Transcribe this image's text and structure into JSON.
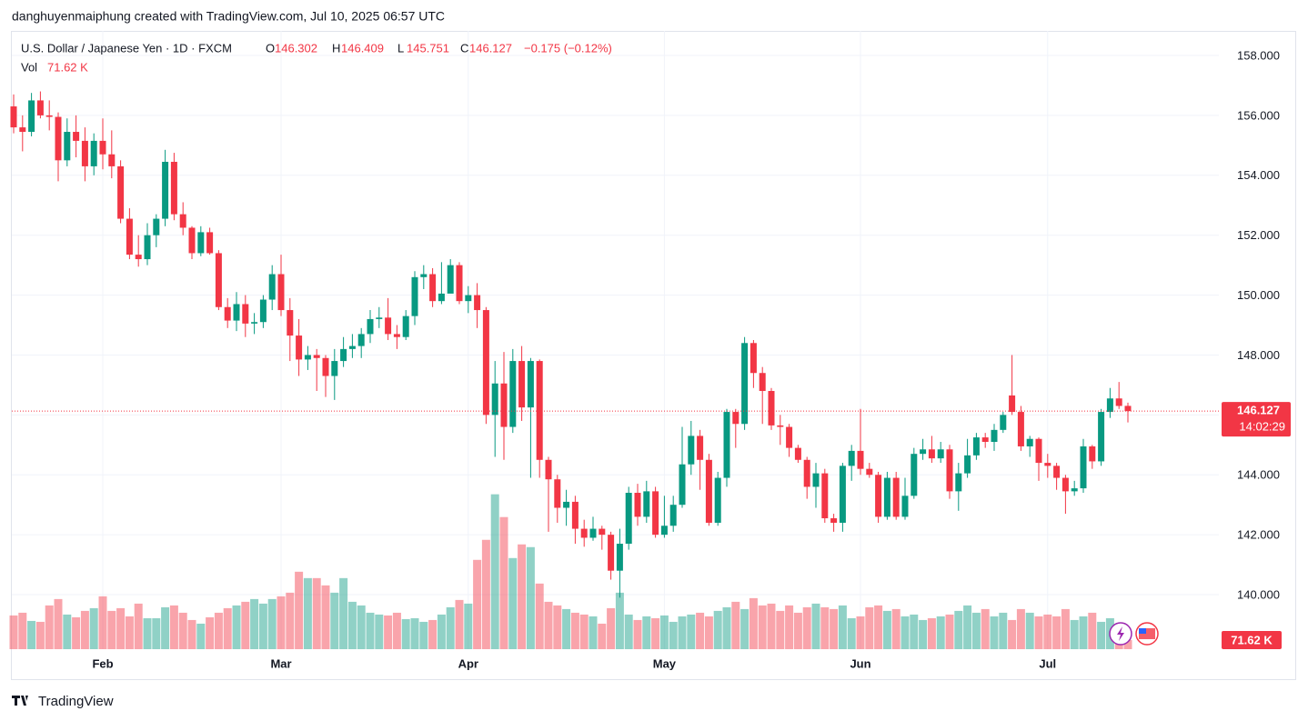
{
  "chart_data": {
    "type": "candlestick",
    "attribution": "danghuyenmaiphung created with TradingView.com, Jul 10, 2025 06:57 UTC",
    "title": "U.S. Dollar / Japanese Yen · 1D · FXCM",
    "ohlc_labels": [
      "O",
      "H",
      "L",
      "C"
    ],
    "change": "−0.175 (−0.12%)",
    "countdown": "14:02:29",
    "brand": "TradingView",
    "up_color": "#089981",
    "down_color": "#f23645",
    "grid": true,
    "categories": [
      null,
      null,
      null,
      null,
      null,
      null,
      null,
      null,
      null,
      null,
      "Feb",
      null,
      null,
      null,
      null,
      null,
      null,
      null,
      null,
      null,
      null,
      null,
      null,
      null,
      null,
      null,
      null,
      null,
      null,
      null,
      "Mar",
      null,
      null,
      null,
      null,
      null,
      null,
      null,
      null,
      null,
      null,
      null,
      null,
      null,
      null,
      null,
      null,
      null,
      null,
      null,
      null,
      "Apr",
      null,
      null,
      null,
      null,
      null,
      null,
      null,
      null,
      null,
      null,
      null,
      null,
      null,
      null,
      null,
      null,
      null,
      null,
      null,
      null,
      null,
      "May",
      null,
      null,
      null,
      null,
      null,
      null,
      null,
      null,
      null,
      null,
      null,
      null,
      null,
      null,
      null,
      null,
      null,
      null,
      null,
      null,
      null,
      "Jun",
      null,
      null,
      null,
      null,
      null,
      null,
      null,
      null,
      null,
      null,
      null,
      null,
      null,
      null,
      null,
      null,
      null,
      null,
      null,
      null,
      "Jul",
      null,
      null,
      null,
      null,
      null,
      null,
      null,
      null,
      null
    ],
    "open": [
      156.3,
      155.6,
      155.45,
      156.5,
      156.0,
      155.95,
      154.5,
      155.45,
      155.15,
      154.3,
      155.15,
      154.7,
      154.3,
      152.55,
      151.35,
      151.2,
      152.0,
      152.55,
      154.45,
      152.7,
      152.25,
      151.4,
      152.1,
      151.4,
      149.6,
      149.15,
      149.7,
      149.05,
      149.1,
      149.85,
      150.7,
      149.5,
      148.65,
      147.85,
      148.0,
      147.9,
      147.3,
      147.8,
      148.2,
      148.3,
      148.7,
      149.2,
      149.25,
      148.7,
      148.6,
      149.3,
      150.6,
      150.7,
      149.8,
      150.05,
      151.0,
      149.8,
      150.0,
      149.5,
      146.0,
      147.05,
      145.6,
      147.8,
      146.25,
      147.8,
      144.5,
      143.85,
      142.9,
      143.1,
      142.2,
      141.9,
      142.2,
      142.0,
      140.8,
      141.7,
      143.4,
      142.6,
      143.45,
      142.0,
      142.3,
      143.0,
      144.35,
      145.3,
      144.5,
      142.4,
      143.9,
      146.1,
      145.7,
      148.4,
      147.4,
      146.8,
      145.65,
      145.6,
      144.9,
      144.5,
      143.6,
      144.05,
      142.55,
      142.4,
      144.3,
      144.8,
      144.2,
      144.0,
      142.6,
      143.9,
      142.6,
      143.3,
      144.7,
      144.85,
      144.55,
      144.85,
      143.45,
      144.05,
      144.65,
      145.25,
      145.1,
      145.5,
      146.65,
      146.1,
      144.95,
      145.2,
      144.4,
      144.3,
      143.9,
      143.45,
      143.55,
      144.95,
      144.45,
      146.1,
      146.55,
      146.302
    ],
    "high": [
      156.7,
      156.0,
      156.75,
      156.8,
      156.5,
      156.1,
      155.9,
      156.0,
      155.6,
      155.4,
      155.9,
      155.5,
      154.5,
      152.9,
      152.0,
      152.4,
      152.7,
      154.85,
      154.75,
      153.1,
      152.3,
      152.3,
      152.25,
      151.5,
      149.9,
      150.1,
      150.0,
      149.4,
      150.0,
      151.0,
      151.35,
      149.9,
      149.2,
      148.3,
      148.2,
      148.0,
      148.2,
      148.6,
      148.7,
      148.9,
      149.5,
      149.6,
      149.9,
      149.0,
      149.5,
      150.8,
      151.0,
      150.9,
      151.1,
      151.2,
      151.1,
      150.3,
      150.4,
      149.6,
      147.8,
      148.1,
      148.2,
      148.3,
      147.9,
      147.85,
      144.6,
      144.0,
      143.5,
      143.3,
      142.5,
      142.6,
      142.3,
      142.1,
      142.2,
      143.6,
      143.7,
      143.8,
      143.6,
      143.3,
      143.3,
      145.6,
      145.8,
      145.5,
      144.7,
      144.1,
      146.2,
      146.2,
      148.6,
      148.5,
      147.6,
      146.9,
      146.0,
      145.7,
      145.0,
      144.6,
      144.4,
      144.2,
      142.7,
      144.4,
      145.0,
      146.2,
      144.4,
      144.1,
      144.1,
      144.1,
      143.9,
      144.9,
      145.2,
      145.3,
      145.1,
      145.0,
      144.4,
      145.2,
      145.4,
      145.4,
      145.7,
      146.1,
      148.0,
      146.3,
      145.3,
      145.25,
      144.7,
      144.4,
      144.0,
      143.8,
      145.2,
      145.0,
      146.2,
      146.9,
      147.1,
      146.409
    ],
    "low": [
      155.4,
      154.8,
      155.3,
      155.9,
      155.5,
      153.8,
      154.3,
      154.6,
      153.8,
      154.0,
      154.2,
      153.9,
      152.4,
      151.2,
      150.95,
      151.0,
      151.6,
      152.3,
      152.5,
      152.0,
      151.2,
      151.3,
      151.35,
      149.5,
      148.9,
      148.8,
      148.6,
      148.7,
      148.9,
      149.5,
      149.3,
      147.8,
      147.3,
      147.5,
      146.8,
      146.6,
      146.5,
      147.6,
      147.9,
      147.9,
      148.4,
      148.9,
      148.5,
      148.2,
      148.5,
      149.0,
      150.2,
      149.6,
      149.7,
      150.2,
      149.7,
      149.4,
      148.9,
      145.7,
      144.6,
      144.5,
      145.4,
      145.8,
      143.9,
      143.9,
      142.1,
      142.4,
      142.3,
      141.7,
      141.6,
      141.8,
      141.5,
      140.5,
      139.9,
      141.5,
      142.3,
      142.4,
      141.9,
      141.9,
      142.1,
      142.9,
      144.0,
      143.5,
      142.3,
      142.3,
      143.6,
      144.9,
      145.5,
      146.9,
      145.7,
      145.5,
      145.0,
      144.6,
      144.4,
      143.2,
      142.9,
      142.4,
      142.1,
      142.1,
      143.8,
      144.0,
      143.9,
      142.4,
      142.5,
      142.5,
      142.5,
      143.2,
      144.5,
      144.4,
      144.4,
      143.2,
      142.8,
      143.9,
      144.5,
      144.9,
      144.8,
      145.4,
      146.0,
      144.8,
      144.6,
      143.8,
      143.9,
      143.5,
      142.7,
      143.3,
      143.4,
      144.2,
      144.3,
      145.9,
      146.2,
      145.751
    ],
    "close": [
      155.6,
      155.45,
      156.5,
      156.0,
      155.95,
      154.5,
      155.45,
      155.15,
      154.3,
      155.15,
      154.7,
      154.3,
      152.55,
      151.35,
      151.2,
      152.0,
      152.55,
      154.45,
      152.7,
      152.25,
      151.4,
      152.1,
      151.4,
      149.6,
      149.15,
      149.7,
      149.05,
      149.1,
      149.85,
      150.7,
      149.5,
      148.65,
      147.85,
      148.0,
      147.9,
      147.3,
      147.8,
      148.2,
      148.3,
      148.7,
      149.2,
      149.25,
      148.7,
      148.6,
      149.3,
      150.6,
      150.7,
      149.8,
      150.05,
      151.0,
      149.8,
      150.0,
      149.5,
      146.0,
      147.05,
      145.6,
      147.8,
      146.25,
      147.8,
      144.5,
      143.85,
      142.9,
      143.1,
      142.2,
      141.9,
      142.2,
      142.0,
      140.8,
      141.7,
      143.4,
      142.6,
      143.45,
      142.0,
      142.3,
      143.0,
      144.35,
      145.3,
      144.5,
      142.4,
      143.9,
      146.1,
      145.7,
      148.4,
      147.4,
      146.8,
      145.65,
      145.6,
      144.9,
      144.5,
      143.6,
      144.05,
      142.55,
      142.4,
      144.3,
      144.8,
      144.2,
      144.0,
      142.6,
      143.9,
      142.6,
      143.3,
      144.7,
      144.85,
      144.55,
      144.85,
      143.45,
      144.05,
      144.65,
      145.25,
      145.1,
      145.5,
      146.0,
      146.1,
      144.95,
      145.2,
      144.4,
      144.3,
      143.9,
      143.45,
      143.55,
      144.95,
      144.45,
      146.1,
      146.55,
      146.3,
      146.127
    ],
    "volume": {
      "name": "Vol",
      "axis": "y2",
      "values": [
        259,
        280,
        217,
        210,
        336,
        385,
        266,
        245,
        294,
        315,
        406,
        294,
        315,
        252,
        350,
        238,
        238,
        322,
        336,
        280,
        224,
        196,
        245,
        280,
        315,
        336,
        364,
        385,
        350,
        385,
        406,
        434,
        595,
        546,
        546,
        490,
        434,
        546,
        364,
        336,
        280,
        266,
        259,
        280,
        231,
        238,
        210,
        224,
        266,
        322,
        378,
        350,
        686,
        840,
        1190,
        1015,
        700,
        805,
        784,
        504,
        364,
        336,
        308,
        280,
        266,
        252,
        196,
        315,
        434,
        266,
        224,
        252,
        238,
        259,
        210,
        252,
        266,
        280,
        252,
        294,
        322,
        364,
        308,
        392,
        336,
        350,
        294,
        336,
        280,
        322,
        350,
        322,
        308,
        336,
        238,
        252,
        322,
        336,
        294,
        308,
        252,
        266,
        224,
        238,
        252,
        266,
        294,
        336,
        280,
        308,
        252,
        280,
        224,
        308,
        280,
        252,
        266,
        252,
        308,
        224,
        252,
        280,
        210,
        238,
        182,
        71.62
      ],
      "value_labels": [
        null,
        null,
        null,
        null,
        null,
        null,
        null,
        null,
        null,
        null,
        null,
        null,
        null,
        null,
        null,
        null,
        null,
        null,
        null,
        null,
        null,
        null,
        null,
        null,
        null,
        null,
        null,
        null,
        null,
        null,
        null,
        null,
        null,
        null,
        null,
        null,
        null,
        null,
        null,
        null,
        null,
        null,
        null,
        null,
        null,
        null,
        null,
        null,
        null,
        null,
        null,
        null,
        null,
        null,
        null,
        null,
        null,
        null,
        null,
        null,
        null,
        null,
        null,
        null,
        null,
        null,
        null,
        null,
        null,
        null,
        null,
        null,
        null,
        null,
        null,
        null,
        null,
        null,
        null,
        null,
        null,
        null,
        null,
        null,
        null,
        null,
        null,
        null,
        null,
        null,
        null,
        null,
        null,
        null,
        null,
        null,
        null,
        null,
        null,
        null,
        null,
        null,
        null,
        null,
        null,
        null,
        null,
        null,
        null,
        null,
        null,
        null,
        null,
        null,
        null,
        null,
        null,
        null,
        null,
        null,
        null,
        null,
        null,
        null,
        null,
        "71.62 K"
      ]
    },
    "ylim": [
      138.18,
      158.82
    ],
    "yticks": [
      {
        "value": 140,
        "label": "140.000"
      },
      {
        "value": 142,
        "label": "142.000"
      },
      {
        "value": 144,
        "label": "144.000"
      },
      {
        "value": 146,
        "label": "146.000"
      },
      {
        "value": 148,
        "label": "148.000"
      },
      {
        "value": 150,
        "label": "150.000"
      },
      {
        "value": 152,
        "label": "152.000"
      },
      {
        "value": 154,
        "label": "154.000"
      },
      {
        "value": 156,
        "label": "156.000"
      },
      {
        "value": 158,
        "label": "158.000"
      }
    ],
    "y2lim": [
      0,
      4750
    ]
  }
}
